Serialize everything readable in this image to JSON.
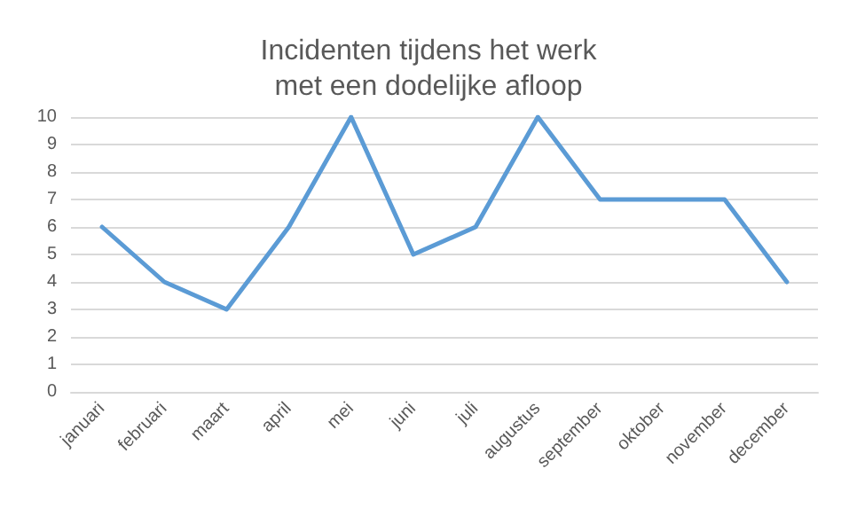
{
  "chart_data": {
    "type": "line",
    "title": "Incidenten tijdens het werk\nmet een dodelijke afloop",
    "categories": [
      "januari",
      "februari",
      "maart",
      "april",
      "mei",
      "juni",
      "juli",
      "augustus",
      "september",
      "oktober",
      "november",
      "december"
    ],
    "values": [
      6,
      4,
      3,
      6,
      10,
      5,
      6,
      10,
      7,
      7,
      7,
      4
    ],
    "color": "#5b9bd5",
    "ylim": [
      0,
      10
    ],
    "yticks": [
      0,
      1,
      2,
      3,
      4,
      5,
      6,
      7,
      8,
      9,
      10
    ],
    "grid": "y",
    "marker": "none",
    "line_style": "solid"
  }
}
